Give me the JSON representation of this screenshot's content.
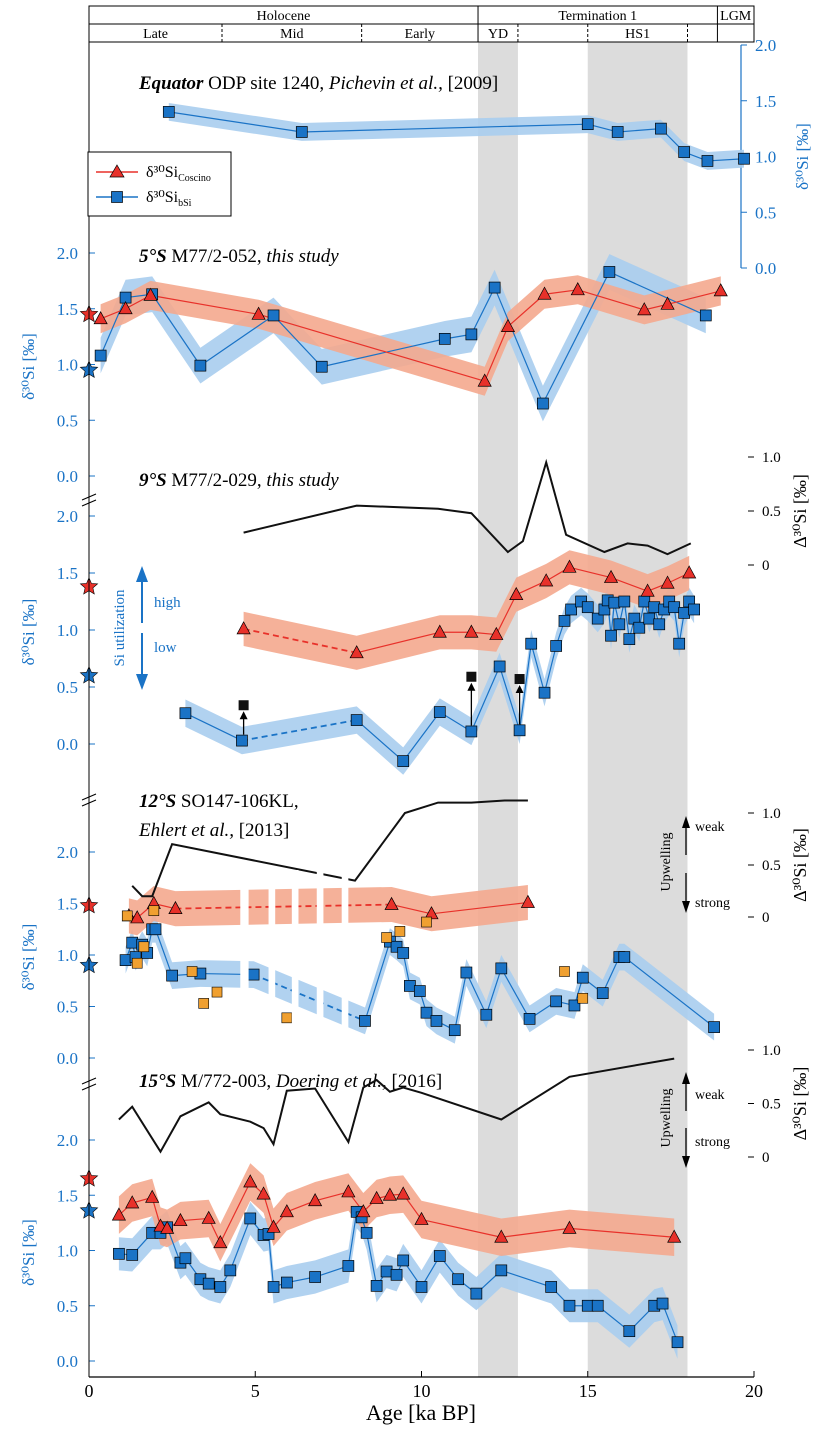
{
  "colors": {
    "coscino": "#e8312a",
    "coscino_band": "#f4a88e",
    "bsi": "#1a73c6",
    "bsi_band": "#a9cdee",
    "axis_blue": "#1a73c6",
    "shade": "#dcdcdc",
    "delta_line": "#111111",
    "extra_orange": "#f0a030",
    "extra_black": "#111111"
  },
  "timescale": {
    "top": [
      {
        "label": "Holocene",
        "from": 0,
        "to": 11.7
      },
      {
        "label": "Termination 1",
        "from": 11.7,
        "to": 18.9
      },
      {
        "label": "LGM",
        "from": 18.9,
        "to": 20
      }
    ],
    "sub": [
      {
        "label": "Late",
        "from": 0,
        "to": 4.0
      },
      {
        "label": "Mid",
        "from": 4.0,
        "to": 8.2
      },
      {
        "label": "Early",
        "from": 8.2,
        "to": 11.7
      },
      {
        "label": "YD",
        "from": 11.7,
        "to": 12.9
      },
      {
        "label": "",
        "from": 12.9,
        "to": 15.0
      },
      {
        "label": "HS1",
        "from": 15.0,
        "to": 18.0
      },
      {
        "label": "",
        "from": 18.0,
        "to": 18.9
      }
    ]
  },
  "legend": {
    "coscino_label": "δ³⁰Si",
    "coscino_sub": "Coscino",
    "bsi_label": "δ³⁰Si",
    "bsi_sub": "bSi"
  },
  "annotations": {
    "si_utilization": "Si utilization",
    "high": "high",
    "low": "low",
    "upwelling": "Upwelling",
    "weak": "weak",
    "strong": "strong"
  },
  "chart_data": {
    "type": "line",
    "xlabel": "Age [ka BP]",
    "xlim": [
      0,
      20
    ],
    "xticks": [
      "0",
      "5",
      "10",
      "15",
      "20"
    ],
    "shaded_intervals": [
      [
        11.7,
        12.9
      ],
      [
        15.0,
        18.0
      ]
    ],
    "panels": [
      {
        "id": "equator",
        "title_bold": "Equator",
        "title_rest": " ODP site 1240, ",
        "title_italic": "Pichevin et al.,",
        "title_tail": " [2009]",
        "ylabel": "δ³⁰Si [‰]",
        "yticks": [
          "0.0",
          "0.5",
          "1.0",
          "1.5",
          "2.0"
        ],
        "bsi": {
          "x": [
            2.4,
            6.4,
            15.0,
            15.9,
            17.2,
            17.9,
            18.6,
            19.7
          ],
          "y": [
            1.4,
            1.22,
            1.29,
            1.22,
            1.25,
            1.04,
            0.96,
            0.98
          ],
          "err": 0.08
        },
        "coscino": null
      },
      {
        "id": "s5",
        "title_bold": "5°S",
        "title_rest": " M77/2-052, ",
        "title_italic": "this study",
        "title_tail": "",
        "ylabel": "δ³⁰Si [‰]",
        "yticks": [
          "0.0",
          "0.5",
          "1.0",
          "1.5",
          "2.0"
        ],
        "star_coscino": 1.45,
        "star_bsi": 0.95,
        "coscino": {
          "x": [
            0.35,
            1.1,
            1.85,
            5.1,
            11.9,
            12.6,
            13.7,
            14.7,
            16.7,
            17.4,
            19.0
          ],
          "y": [
            1.41,
            1.5,
            1.62,
            1.45,
            0.85,
            1.34,
            1.63,
            1.67,
            1.49,
            1.54,
            1.66
          ],
          "err": 0.13,
          "dashed": [
            [
              1.85,
              11.9
            ]
          ]
        },
        "bsi": {
          "x": [
            0.35,
            1.1,
            1.9,
            3.35,
            5.55,
            7.0,
            10.7,
            11.5,
            12.2,
            13.65,
            15.65,
            18.55
          ],
          "y": [
            1.08,
            1.6,
            1.63,
            0.99,
            1.44,
            0.98,
            1.23,
            1.27,
            1.69,
            0.65,
            1.83,
            1.44
          ],
          "err": 0.16
        }
      },
      {
        "id": "s9",
        "title_bold": "9°S",
        "title_rest": " M77/2-029, ",
        "title_italic": "this study",
        "title_tail": "",
        "ylabel": "δ³⁰Si [‰]",
        "yticks": [
          "0.0",
          "0.5",
          "1.0",
          "1.5",
          "2.0"
        ],
        "ylabel_right": "Δ³⁰Si [‰]",
        "yticks_right": [
          "0",
          "0.5",
          "1.0"
        ],
        "star_coscino": 1.38,
        "star_bsi": 0.6,
        "coscino": {
          "x": [
            4.65,
            8.05,
            10.55,
            11.5,
            12.25,
            12.85,
            13.75,
            14.45,
            15.7,
            16.8,
            17.4,
            18.05
          ],
          "y": [
            1.01,
            0.8,
            0.98,
            0.98,
            0.96,
            1.31,
            1.43,
            1.55,
            1.46,
            1.34,
            1.41,
            1.5
          ],
          "err": 0.15,
          "dashed": [
            [
              4.65,
              8.05
            ]
          ]
        },
        "bsi": {
          "x": [
            2.9,
            4.6,
            8.05,
            9.45,
            10.55,
            11.5,
            12.35,
            12.95,
            13.3,
            13.7,
            14.05,
            14.3,
            14.5,
            14.8,
            15.0,
            15.3,
            15.5,
            15.6,
            15.7,
            15.8,
            15.95,
            16.1,
            16.25,
            16.4,
            16.55,
            16.7,
            16.85,
            17.0,
            17.15,
            17.3,
            17.45,
            17.6,
            17.75,
            17.9,
            18.05,
            18.2
          ],
          "y": [
            0.27,
            0.03,
            0.21,
            -0.15,
            0.28,
            0.11,
            0.68,
            0.12,
            0.88,
            0.45,
            0.86,
            1.08,
            1.18,
            1.25,
            1.2,
            1.1,
            1.18,
            1.26,
            0.95,
            1.24,
            1.05,
            1.25,
            0.92,
            1.1,
            1.02,
            1.25,
            1.1,
            1.2,
            1.05,
            1.18,
            1.25,
            1.2,
            0.88,
            1.15,
            1.25,
            1.18
          ],
          "err": 0.12,
          "dashed": [
            [
              4.6,
              8.05
            ]
          ]
        },
        "extra_black": {
          "x": [
            4.65,
            11.5,
            12.95
          ],
          "y": [
            0.34,
            0.59,
            0.57
          ],
          "from_y": [
            0.03,
            0.11,
            0.12
          ]
        },
        "delta": {
          "x": [
            4.65,
            8.05,
            10.5,
            11.5,
            12.6,
            13.05,
            13.75,
            14.35,
            15.5,
            16.2,
            16.8,
            17.4,
            18.1
          ],
          "y": [
            0.3,
            0.55,
            0.52,
            0.48,
            0.12,
            0.22,
            0.95,
            0.28,
            0.12,
            0.2,
            0.18,
            0.1,
            0.2
          ]
        }
      },
      {
        "id": "s12",
        "title_bold": "12°S",
        "title_rest": " SO147-106KL,",
        "title_italic": "Ehlert et al.,",
        "title_tail": " [2013]",
        "ylabel": "δ³⁰Si [‰]",
        "yticks": [
          "0.0",
          "0.5",
          "1.0",
          "1.5",
          "2.0"
        ],
        "ylabel_right": "Δ³⁰Si [‰]",
        "yticks_right": [
          "0",
          "0.5",
          "1.0"
        ],
        "star_coscino": 1.48,
        "star_bsi": 0.9,
        "coscino": {
          "x": [
            1.2,
            1.45,
            1.95,
            2.6,
            9.1,
            10.3,
            13.2
          ],
          "y": [
            1.38,
            1.36,
            1.5,
            1.45,
            1.49,
            1.4,
            1.51
          ],
          "err": 0.17,
          "dashed": [
            [
              2.6,
              9.1
            ]
          ]
        },
        "bsi": {
          "x": [
            1.1,
            1.3,
            1.4,
            1.6,
            1.75,
            1.9,
            2.0,
            2.5,
            3.35,
            4.95,
            8.3,
            9.05,
            9.25,
            9.45,
            9.65,
            9.95,
            10.15,
            10.45,
            11.0,
            11.35,
            11.95,
            12.4,
            13.25,
            14.05,
            14.6,
            14.85,
            15.45,
            15.95,
            16.1,
            18.8
          ],
          "y": [
            0.95,
            1.12,
            0.98,
            1.1,
            1.02,
            1.25,
            1.25,
            0.8,
            0.82,
            0.81,
            0.36,
            1.13,
            1.08,
            1.02,
            0.7,
            0.65,
            0.44,
            0.36,
            0.27,
            0.83,
            0.42,
            0.87,
            0.38,
            0.55,
            0.51,
            0.78,
            0.63,
            0.98,
            0.98,
            0.3
          ],
          "err": 0.13,
          "dashed": [
            [
              4.95,
              8.3
            ]
          ]
        },
        "extra_orange": {
          "x": [
            1.15,
            1.45,
            1.65,
            1.95,
            3.1,
            3.45,
            3.85,
            5.95,
            8.95,
            9.35,
            10.15,
            14.3,
            14.85
          ],
          "y": [
            1.38,
            0.92,
            1.08,
            1.43,
            0.84,
            0.53,
            0.64,
            0.39,
            1.17,
            1.23,
            1.32,
            0.84,
            0.58
          ]
        },
        "delta": {
          "x": [
            1.3,
            1.6,
            1.9,
            2.5,
            8.0,
            9.5,
            10.5,
            11.5,
            12.5,
            13.2
          ],
          "y": [
            0.3,
            0.2,
            0.2,
            0.7,
            0.35,
            1.0,
            1.1,
            1.1,
            1.12,
            1.12
          ]
        }
      },
      {
        "id": "s15",
        "title_bold": "15°S",
        "title_rest": " M/772-003, ",
        "title_italic": "Doering et al.,",
        "title_tail": " [2016]",
        "ylabel": "δ³⁰Si [‰]",
        "yticks": [
          "0.0",
          "0.5",
          "1.0",
          "1.5",
          "2.0"
        ],
        "ylabel_right": "Δ³⁰Si [‰]",
        "yticks_right": [
          "0",
          "0.5",
          "1.0"
        ],
        "star_coscino": 1.65,
        "star_bsi": 1.36,
        "coscino": {
          "x": [
            0.9,
            1.3,
            1.9,
            2.15,
            2.35,
            2.75,
            3.6,
            3.95,
            4.85,
            5.25,
            5.55,
            5.95,
            6.8,
            7.8,
            8.25,
            8.65,
            9.05,
            9.45,
            10.0,
            12.4,
            14.45,
            17.6
          ],
          "y": [
            1.32,
            1.43,
            1.48,
            1.22,
            1.2,
            1.27,
            1.29,
            1.07,
            1.62,
            1.51,
            1.21,
            1.35,
            1.45,
            1.53,
            1.35,
            1.47,
            1.5,
            1.51,
            1.28,
            1.12,
            1.2,
            1.12
          ],
          "err": 0.17
        },
        "bsi": {
          "x": [
            0.9,
            1.3,
            1.9,
            2.15,
            2.35,
            2.75,
            2.9,
            3.35,
            3.6,
            3.95,
            4.25,
            4.85,
            5.25,
            5.4,
            5.55,
            5.95,
            6.8,
            7.8,
            8.05,
            8.2,
            8.35,
            8.65,
            8.95,
            9.25,
            9.45,
            10.0,
            10.55,
            11.1,
            11.65,
            12.4,
            13.9,
            14.45,
            15.0,
            15.3,
            16.25,
            17.0,
            17.25,
            17.7
          ],
          "y": [
            0.97,
            0.96,
            1.16,
            1.16,
            1.21,
            0.89,
            0.93,
            0.74,
            0.7,
            0.67,
            0.82,
            1.29,
            1.14,
            1.15,
            0.67,
            0.71,
            0.76,
            0.86,
            1.35,
            1.3,
            1.16,
            0.68,
            0.81,
            0.78,
            0.91,
            0.67,
            0.95,
            0.74,
            0.61,
            0.82,
            0.67,
            0.5,
            0.5,
            0.5,
            0.27,
            0.5,
            0.52,
            0.17
          ],
          "err": 0.15
        },
        "delta": {
          "x": [
            0.9,
            1.3,
            2.15,
            2.75,
            3.6,
            3.95,
            4.85,
            5.25,
            5.55,
            5.95,
            6.8,
            7.8,
            8.25,
            8.65,
            9.05,
            9.45,
            10.0,
            12.4,
            14.45,
            17.6
          ],
          "y": [
            0.35,
            0.47,
            0.05,
            0.38,
            0.51,
            0.4,
            0.33,
            0.27,
            0.12,
            0.62,
            0.64,
            0.14,
            0.65,
            0.72,
            0.61,
            0.65,
            0.6,
            0.35,
            0.75,
            0.92
          ]
        }
      }
    ]
  }
}
